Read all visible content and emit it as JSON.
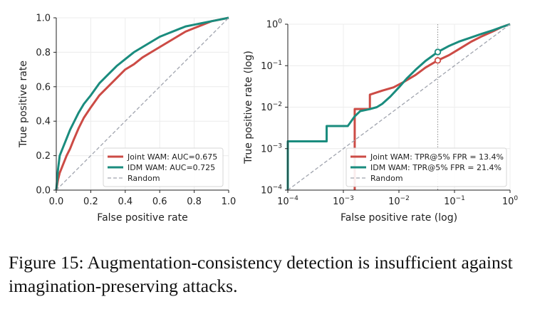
{
  "colors": {
    "joint": "#cc4b45",
    "idm": "#1a8c7e",
    "random": "#a0a4ae"
  },
  "chart_data": [
    {
      "type": "line",
      "xlabel": "False positive rate",
      "ylabel": "True positive rate",
      "xlim": [
        0,
        1
      ],
      "ylim": [
        0,
        1
      ],
      "xscale": "linear",
      "yscale": "linear",
      "xticks": [
        "0.0",
        "0.2",
        "0.4",
        "0.6",
        "0.8",
        "1.0"
      ],
      "yticks": [
        "0.0",
        "0.2",
        "0.4",
        "0.6",
        "0.8",
        "1.0"
      ],
      "grid": true,
      "legend_position": "lower-right",
      "series": [
        {
          "name": "Joint WAM: AUC=0.675",
          "color": "joint",
          "x": [
            0,
            0.01,
            0.02,
            0.04,
            0.06,
            0.08,
            0.1,
            0.13,
            0.16,
            0.2,
            0.25,
            0.3,
            0.35,
            0.4,
            0.45,
            0.5,
            0.55,
            0.6,
            0.65,
            0.7,
            0.75,
            0.8,
            0.85,
            0.9,
            0.95,
            1.0
          ],
          "y": [
            0,
            0.06,
            0.1,
            0.15,
            0.2,
            0.24,
            0.29,
            0.36,
            0.42,
            0.48,
            0.55,
            0.6,
            0.65,
            0.7,
            0.73,
            0.77,
            0.8,
            0.83,
            0.86,
            0.89,
            0.92,
            0.94,
            0.96,
            0.98,
            0.99,
            1.0
          ]
        },
        {
          "name": "IDM WAM: AUC=0.725",
          "color": "idm",
          "x": [
            0,
            0.01,
            0.02,
            0.04,
            0.06,
            0.08,
            0.1,
            0.13,
            0.16,
            0.2,
            0.25,
            0.3,
            0.35,
            0.4,
            0.45,
            0.5,
            0.55,
            0.6,
            0.65,
            0.7,
            0.75,
            0.8,
            0.85,
            0.9,
            0.95,
            1.0
          ],
          "y": [
            0,
            0.12,
            0.2,
            0.25,
            0.3,
            0.35,
            0.39,
            0.45,
            0.5,
            0.55,
            0.62,
            0.67,
            0.72,
            0.76,
            0.8,
            0.83,
            0.86,
            0.89,
            0.91,
            0.93,
            0.95,
            0.96,
            0.97,
            0.98,
            0.99,
            1.0
          ]
        },
        {
          "name": "Random",
          "color": "random",
          "dashed": true,
          "x": [
            0,
            1
          ],
          "y": [
            0,
            1
          ]
        }
      ]
    },
    {
      "type": "line",
      "xlabel": "False positive rate (log)",
      "ylabel": "True positive rate (log)",
      "xlim": [
        0.0001,
        1
      ],
      "ylim": [
        0.0001,
        1
      ],
      "xscale": "log",
      "yscale": "log",
      "xticks": [
        {
          "value": 0.0001,
          "base": "10",
          "exp": "−4"
        },
        {
          "value": 0.001,
          "base": "10",
          "exp": "−3"
        },
        {
          "value": 0.01,
          "base": "10",
          "exp": "−2"
        },
        {
          "value": 0.1,
          "base": "10",
          "exp": "−1"
        },
        {
          "value": 1,
          "base": "10",
          "exp": "0"
        }
      ],
      "yticks": [
        {
          "value": 0.0001,
          "base": "10",
          "exp": "−4"
        },
        {
          "value": 0.001,
          "base": "10",
          "exp": "−3"
        },
        {
          "value": 0.01,
          "base": "10",
          "exp": "−2"
        },
        {
          "value": 0.1,
          "base": "10",
          "exp": "−1"
        },
        {
          "value": 1,
          "base": "10",
          "exp": "0"
        }
      ],
      "grid": true,
      "legend_position": "lower-right",
      "reference_line_x": 0.05,
      "series": [
        {
          "name": "Joint WAM: TPR@5% FPR = 13.4%",
          "color": "joint",
          "x": [
            0.0016,
            0.0016,
            0.0016,
            0.003,
            0.003,
            0.005,
            0.008,
            0.012,
            0.02,
            0.03,
            0.05,
            0.08,
            0.12,
            0.2,
            0.3,
            0.5,
            0.7,
            1.0
          ],
          "y": [
            0.0001,
            0.0013,
            0.009,
            0.009,
            0.02,
            0.025,
            0.03,
            0.04,
            0.06,
            0.09,
            0.134,
            0.18,
            0.25,
            0.38,
            0.5,
            0.68,
            0.85,
            1.0
          ],
          "marker": {
            "x": 0.05,
            "y": 0.134
          }
        },
        {
          "name": "IDM WAM: TPR@5% FPR = 21.4%",
          "color": "idm",
          "x": [
            0.0001,
            0.0001,
            0.0005,
            0.0005,
            0.0012,
            0.0016,
            0.002,
            0.003,
            0.004,
            0.005,
            0.007,
            0.01,
            0.014,
            0.02,
            0.03,
            0.05,
            0.08,
            0.12,
            0.2,
            0.3,
            0.5,
            0.7,
            1.0
          ],
          "y": [
            0.0001,
            0.0015,
            0.0015,
            0.0035,
            0.0035,
            0.006,
            0.008,
            0.009,
            0.01,
            0.012,
            0.018,
            0.03,
            0.05,
            0.08,
            0.13,
            0.214,
            0.3,
            0.38,
            0.48,
            0.58,
            0.72,
            0.85,
            1.0
          ],
          "marker": {
            "x": 0.05,
            "y": 0.214
          }
        },
        {
          "name": "Random",
          "color": "random",
          "dashed": true,
          "x": [
            0.0001,
            1
          ],
          "y": [
            0.0001,
            1
          ]
        }
      ]
    }
  ],
  "caption": "Figure 15: Augmentation-consistency detection is insufficient against imagination-preserving attacks."
}
